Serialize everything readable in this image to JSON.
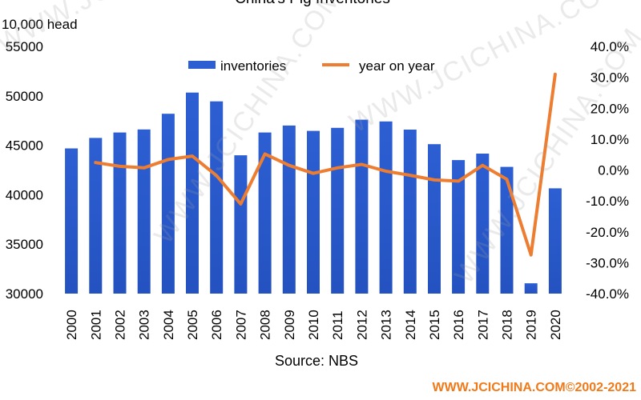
{
  "chart_data": {
    "type": "bar",
    "title": "China's Pig Inventories",
    "ylabel": "10,000 head",
    "source": "Source: NBS",
    "copyright": "WWW.JCICHINA.COM©2002-2021",
    "watermark": "WWW.JCICHINA.COM",
    "categories": [
      "2000",
      "2001",
      "2002",
      "2003",
      "2004",
      "2005",
      "2006",
      "2007",
      "2008",
      "2009",
      "2010",
      "2011",
      "2012",
      "2013",
      "2014",
      "2015",
      "2016",
      "2017",
      "2018",
      "2019",
      "2020"
    ],
    "series": [
      {
        "name": "inventories",
        "type": "bar",
        "axis": "left",
        "values": [
          44682,
          45743,
          46292,
          46602,
          48189,
          50335,
          49441,
          43989,
          46291,
          46996,
          46460,
          46767,
          47592,
          47411,
          46583,
          45113,
          43504,
          44159,
          42817,
          31041,
          40650
        ]
      },
      {
        "name": "year on year",
        "type": "line",
        "axis": "right",
        "values": [
          null,
          2.4,
          1.2,
          0.7,
          3.4,
          4.5,
          -1.8,
          -11.0,
          5.2,
          1.5,
          -1.1,
          0.7,
          1.8,
          -0.4,
          -1.7,
          -3.2,
          -3.6,
          1.5,
          -3.0,
          -27.5,
          31.0
        ]
      }
    ],
    "ylim": [
      30000,
      55000
    ],
    "yticks": [
      "30000",
      "35000",
      "40000",
      "45000",
      "50000",
      "55000"
    ],
    "y2lim": [
      -40,
      40
    ],
    "y2ticks": [
      "-40.0%",
      "-30.0%",
      "-20.0%",
      "-10.0%",
      "0.0%",
      "10.0%",
      "20.0%",
      "30.0%",
      "40.0%"
    ],
    "legend_position": "top",
    "grid": false,
    "colors": {
      "bar": "#2D5FD3",
      "line": "#ED7D31",
      "copyright": "#F07A1A",
      "text": "#000000"
    }
  }
}
